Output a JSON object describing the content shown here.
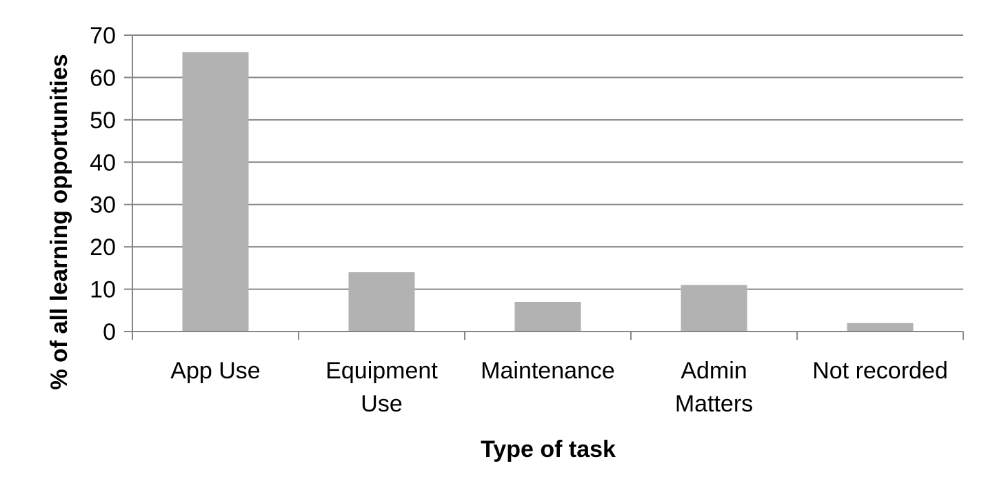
{
  "chart_data": {
    "type": "bar",
    "categories": [
      [
        "App Use"
      ],
      [
        "Equipment",
        "Use"
      ],
      [
        "Maintenance"
      ],
      [
        "Admin",
        "Matters"
      ],
      [
        "Not recorded"
      ]
    ],
    "values": [
      66,
      14,
      7,
      11,
      2
    ],
    "xlabel": "Type of task",
    "ylabel": "% of all learning opportunities",
    "ylim": [
      0,
      70
    ],
    "yticks": [
      0,
      10,
      20,
      30,
      40,
      50,
      60,
      70
    ],
    "grid": true,
    "legend": "none",
    "bar_color": "#b2b2b2",
    "grid_color": "#868686"
  }
}
